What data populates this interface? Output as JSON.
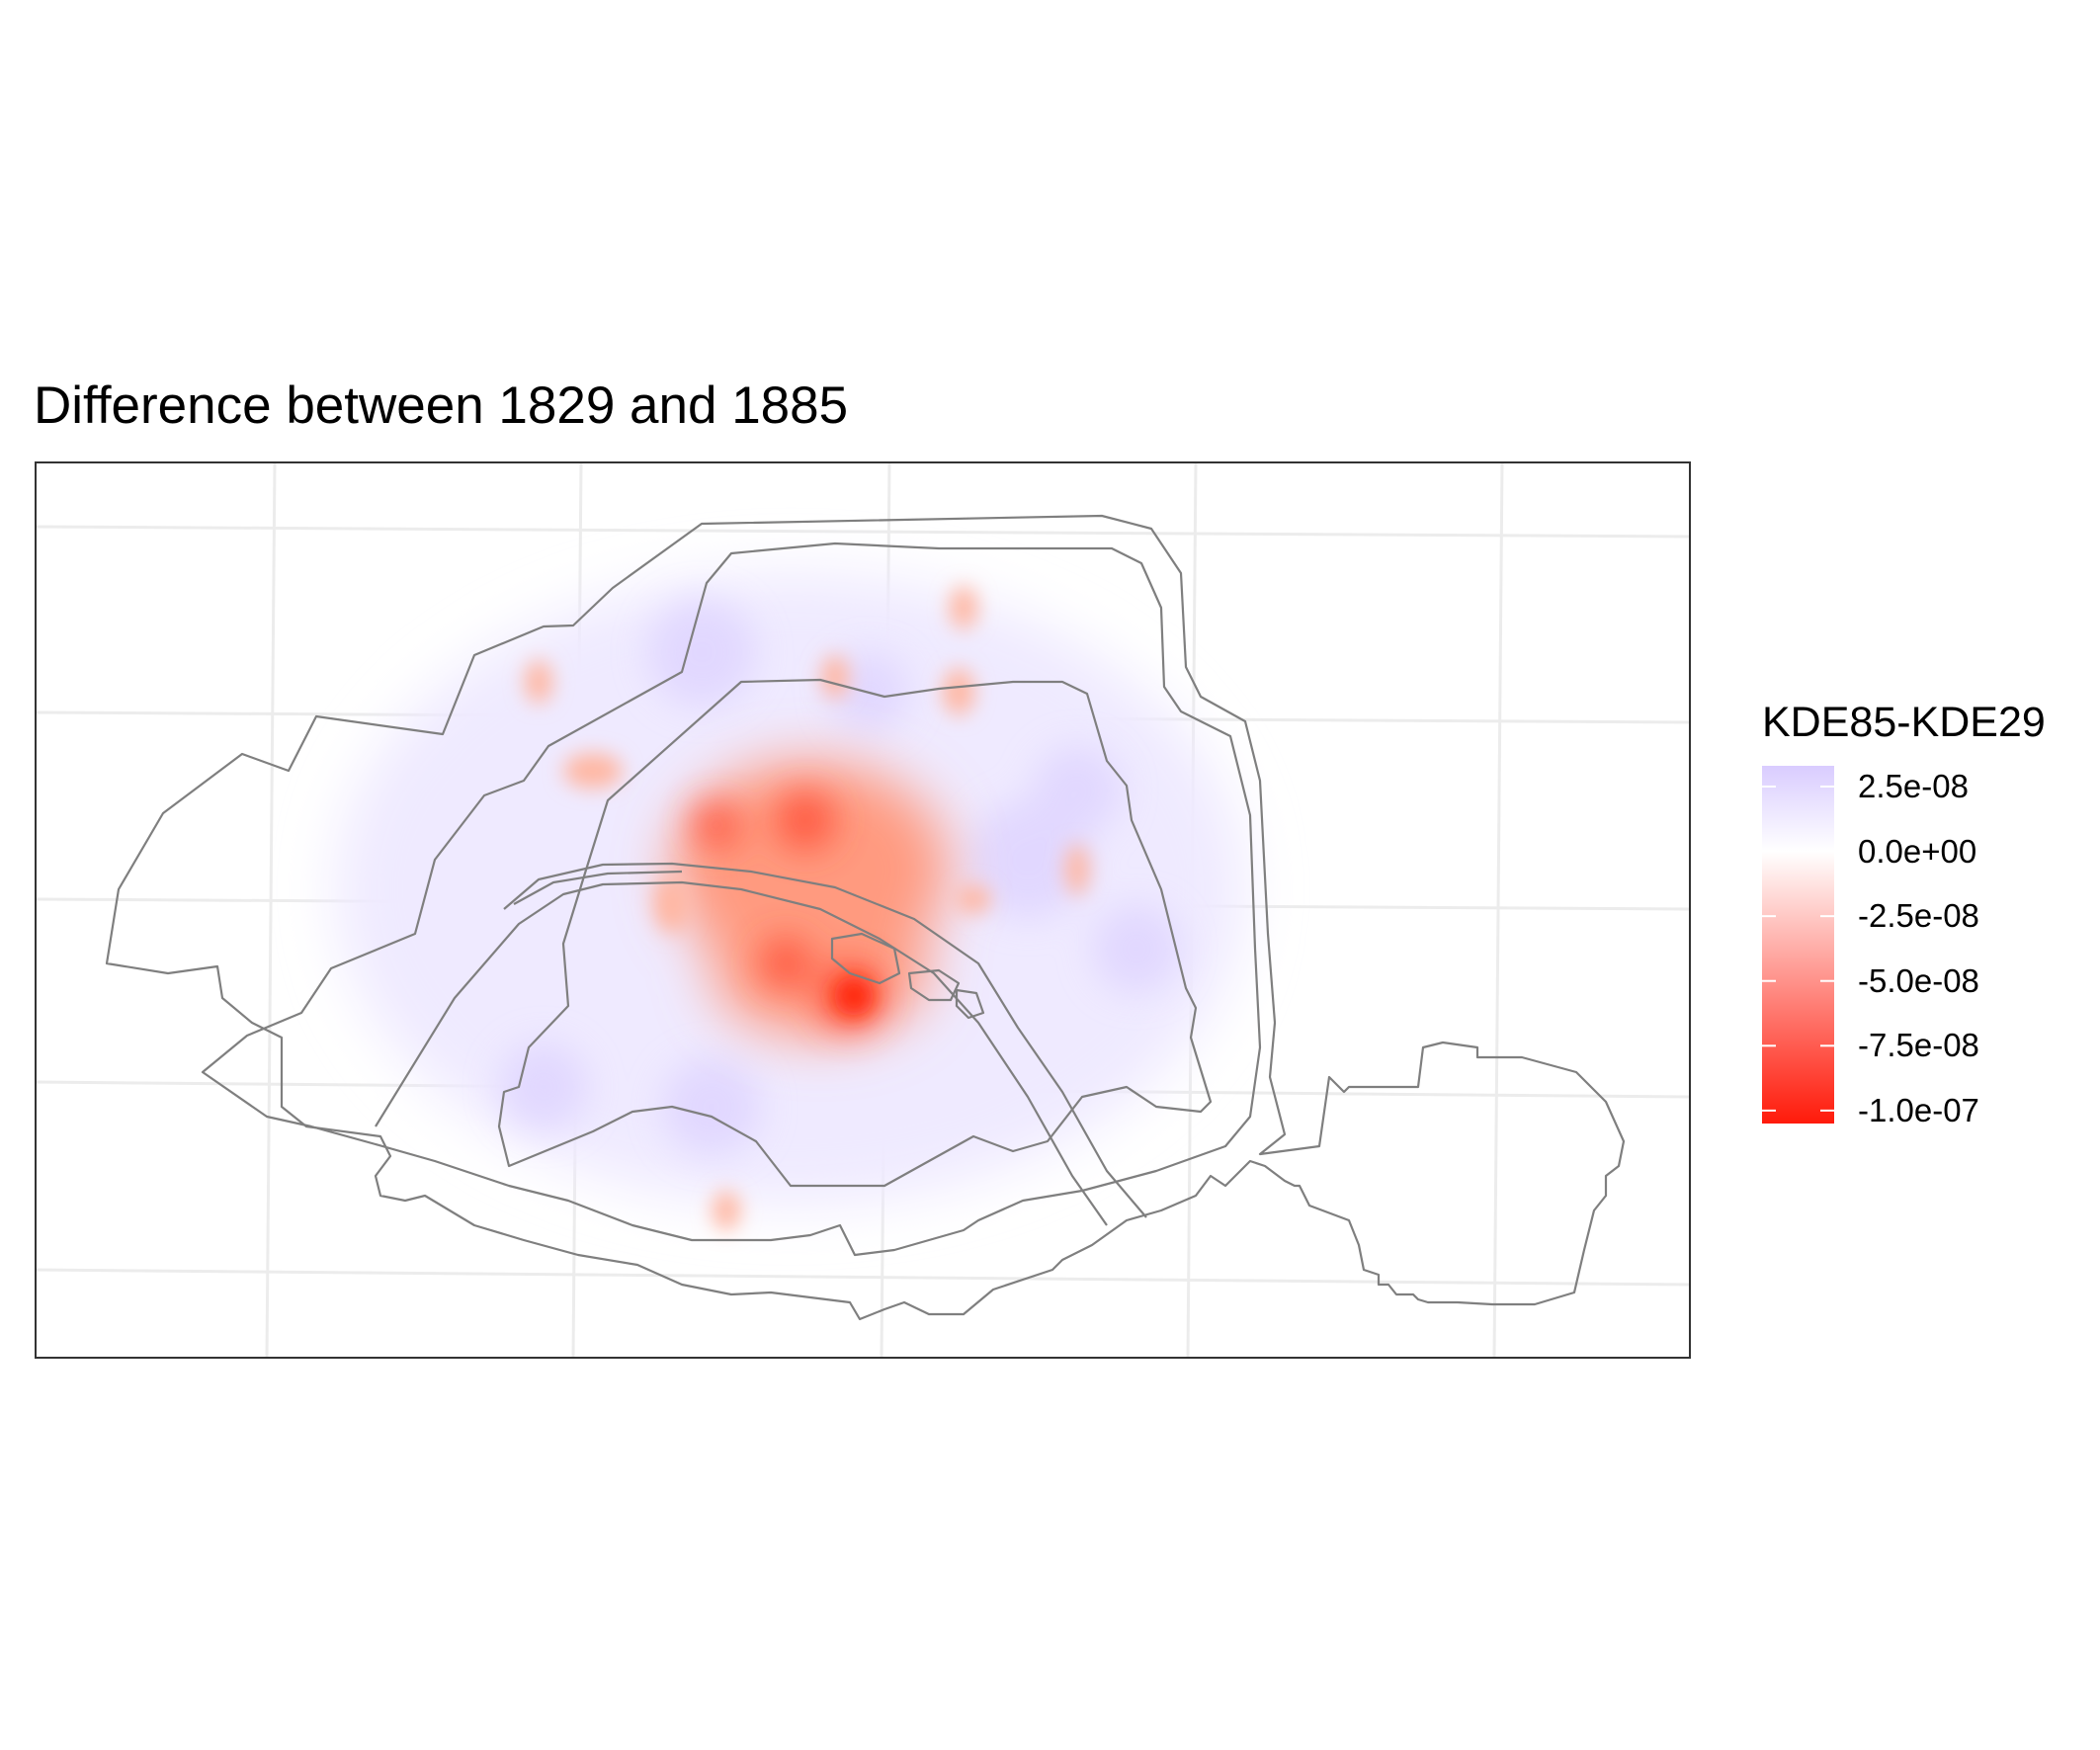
{
  "title": "Difference between 1829 and 1885",
  "legend": {
    "title": "KDE85-KDE29",
    "labels": [
      "2.5e-08",
      "0.0e+00",
      "-2.5e-08",
      "-5.0e-08",
      "-7.5e-08",
      "-1.0e-07"
    ],
    "values": [
      2.5e-08,
      0,
      -2.5e-08,
      -5e-08,
      -7.5e-08,
      -1e-07
    ],
    "colors": {
      "high": "#d9ccff",
      "mid": "#ffffff",
      "low": "#ff1a0a"
    }
  },
  "map": {
    "grid": true,
    "boundary_color": "#808080"
  }
}
